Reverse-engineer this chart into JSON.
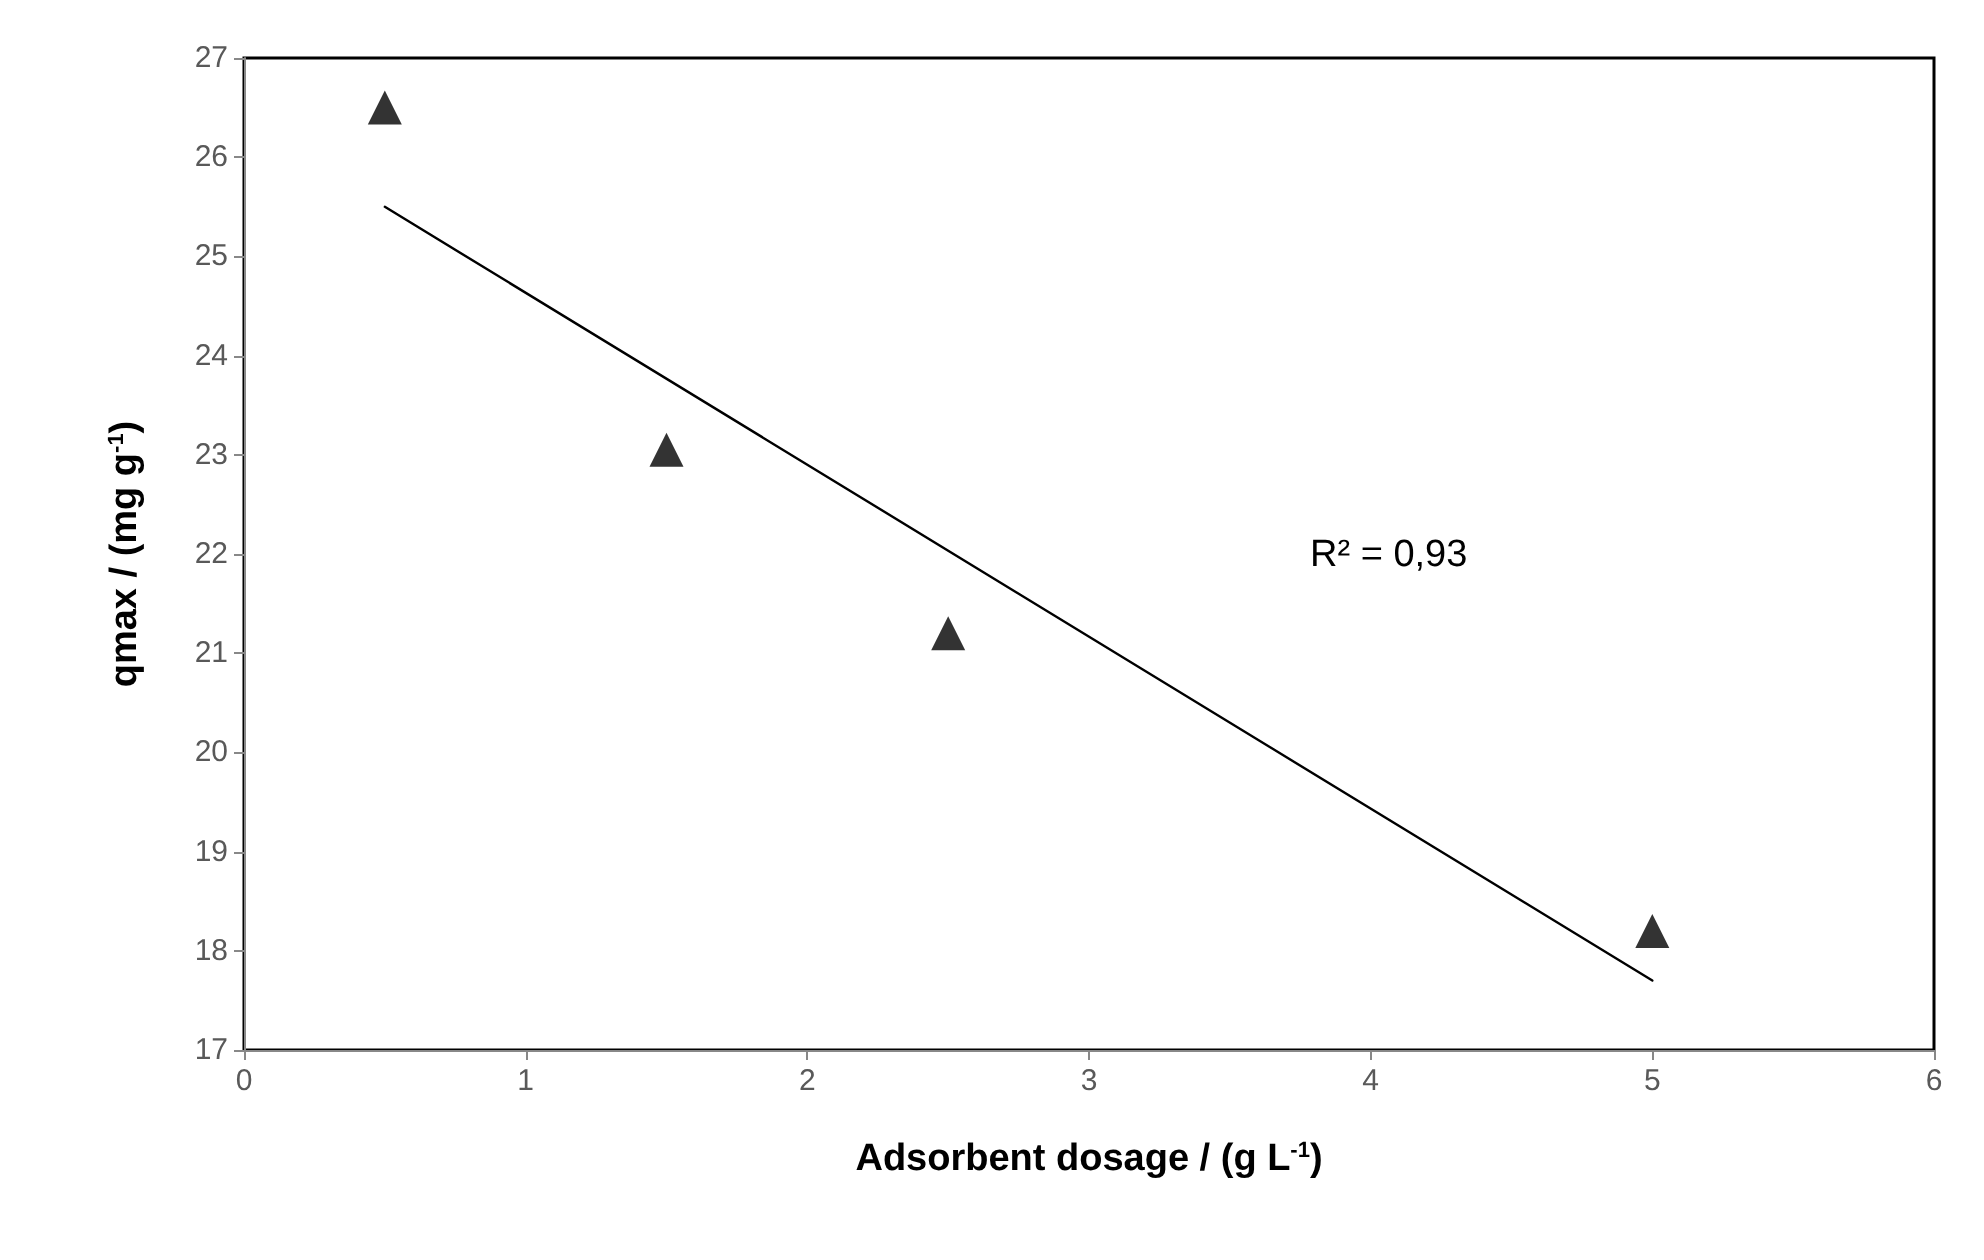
{
  "chart_data": {
    "type": "scatter",
    "xlabel": "Adsorbent dosage / (g L$^{-1}$)",
    "ylabel": "qmax / (mg g$^{-1}$)",
    "x": [
      0.5,
      1.5,
      2.5,
      5
    ],
    "series": [
      {
        "type": "scatter",
        "color": "#000000",
        "marker": "triangle",
        "values": [
          26.5,
          23.05,
          21.2,
          18.2
        ]
      },
      {
        "type": "line",
        "color": "#000000",
        "marker": "none",
        "line_style": "solid",
        "x": [
          0.5,
          5
        ],
        "values": [
          25.5,
          17.7
        ]
      }
    ],
    "annotations": [
      "R² = 0,93"
    ],
    "xlim": [
      0,
      6
    ],
    "xticks": [
      0,
      1,
      2,
      3,
      4,
      5,
      6
    ],
    "ylim": [
      17,
      27
    ],
    "yticks": [
      17,
      18,
      19,
      20,
      21,
      22,
      23,
      24,
      25,
      26,
      27
    ],
    "grid": false
  }
}
